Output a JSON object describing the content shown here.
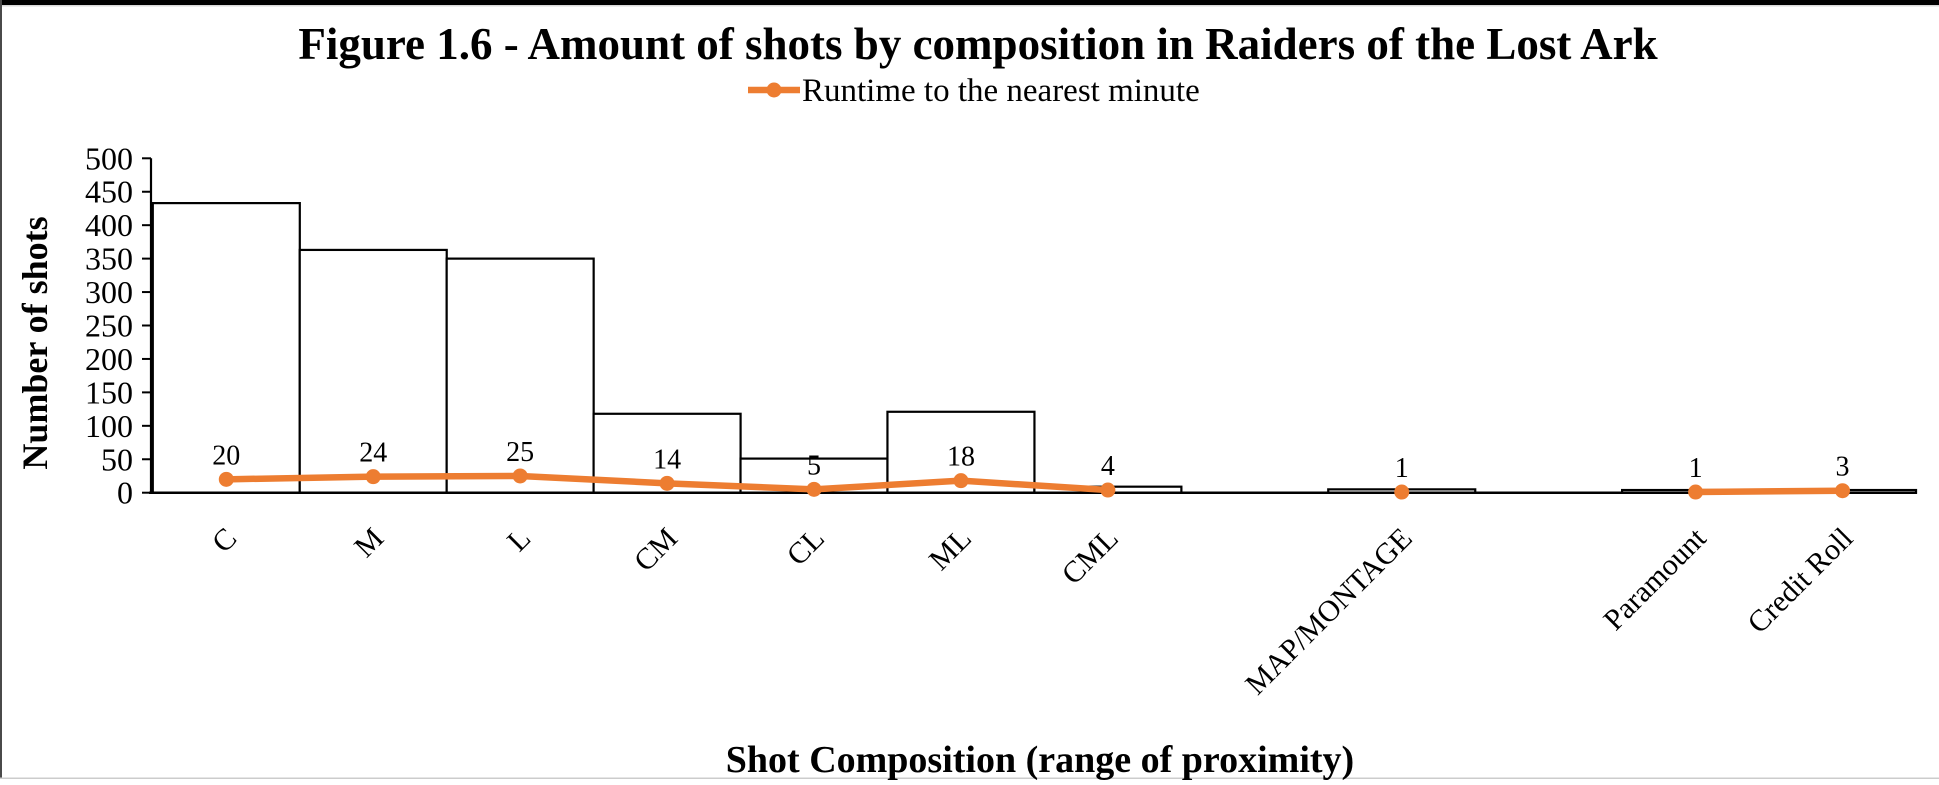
{
  "colors": {
    "line_accent": "#ED7D31",
    "bar_fill": "#FFFFFF",
    "bar_stroke": "#000000",
    "axis": "#000000"
  },
  "chart_data": {
    "type": "bar",
    "title": "Figure 1.6 - Amount of shots by composition in Raiders of the Lost Ark",
    "xlabel": "Shot Composition (range of proximity)",
    "ylabel": "Number of shots",
    "ylim": [
      0,
      500
    ],
    "yticks": [
      0,
      50,
      100,
      150,
      200,
      250,
      300,
      350,
      400,
      450,
      500
    ],
    "grid": "off",
    "legend": {
      "position": "top",
      "entries": [
        "Runtime to the nearest minute"
      ],
      "label": "Runtime to the nearest minute"
    },
    "categories": [
      "C",
      "M",
      "L",
      "CM",
      "CL",
      "ML",
      "CML",
      "",
      "MAP/MONTAGE",
      "",
      "Paramount",
      "Credit Roll"
    ],
    "series": [
      {
        "name": "Number of shots",
        "type": "bar",
        "values": [
          433,
          363,
          350,
          118,
          51,
          121,
          9,
          null,
          5,
          null,
          4,
          4
        ]
      },
      {
        "name": "Runtime to the nearest minute",
        "type": "line",
        "values": [
          20,
          24,
          25,
          14,
          5,
          18,
          4,
          null,
          1,
          null,
          1,
          3
        ],
        "data_labels": [
          "20",
          "24",
          "25",
          "14",
          "5",
          "18",
          "4",
          null,
          "1",
          null,
          "1",
          "3"
        ]
      }
    ]
  }
}
